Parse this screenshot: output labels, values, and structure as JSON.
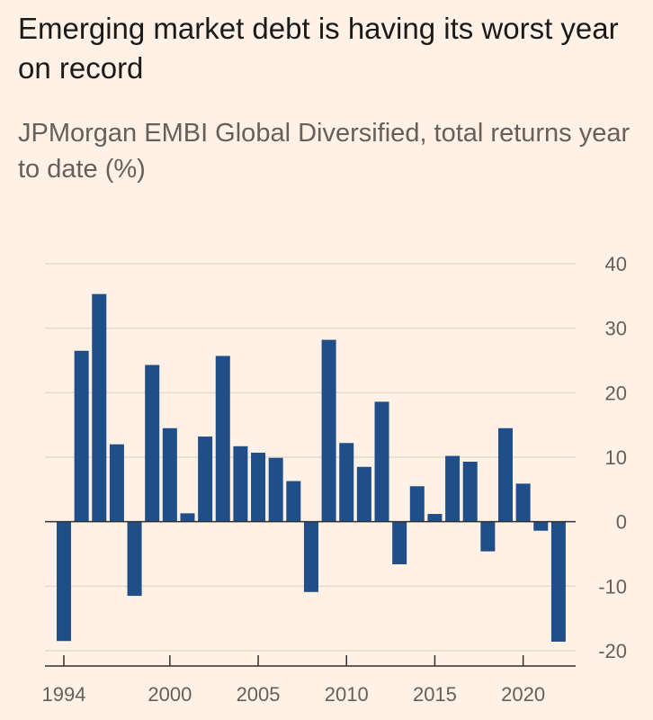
{
  "title": "Emerging market debt is having its worst year on record",
  "subtitle": "JPMorgan EMBI Global Diversified, total returns year to date (%)",
  "chart_data": {
    "type": "bar",
    "title": "Emerging market debt is having its worst year on record",
    "subtitle": "JPMorgan EMBI Global Diversified, total returns year to date (%)",
    "x": [
      1994,
      1995,
      1996,
      1997,
      1998,
      1999,
      2000,
      2001,
      2002,
      2003,
      2004,
      2005,
      2006,
      2007,
      2008,
      2009,
      2010,
      2011,
      2012,
      2013,
      2014,
      2015,
      2016,
      2017,
      2018,
      2019,
      2020,
      2021,
      2022
    ],
    "values": [
      -18.5,
      26.5,
      35.3,
      12,
      -11.5,
      24.3,
      14.5,
      1.3,
      13.2,
      25.7,
      11.7,
      10.7,
      9.9,
      6.3,
      -10.9,
      28.2,
      12.2,
      8.5,
      18.6,
      -6.6,
      5.5,
      1.2,
      10.2,
      9.3,
      -4.6,
      14.5,
      5.9,
      -1.4,
      -18.6
    ],
    "ylim": [
      -20,
      40
    ],
    "yticks": [
      40,
      30,
      20,
      10,
      0,
      -10,
      -20
    ],
    "xtick_labels": [
      "1994",
      "2000",
      "2005",
      "2010",
      "2015",
      "2020"
    ],
    "grid": true,
    "y_axis_side": "right",
    "colors": {
      "bar": "#1f4e89",
      "background": "#fff1e5"
    }
  }
}
